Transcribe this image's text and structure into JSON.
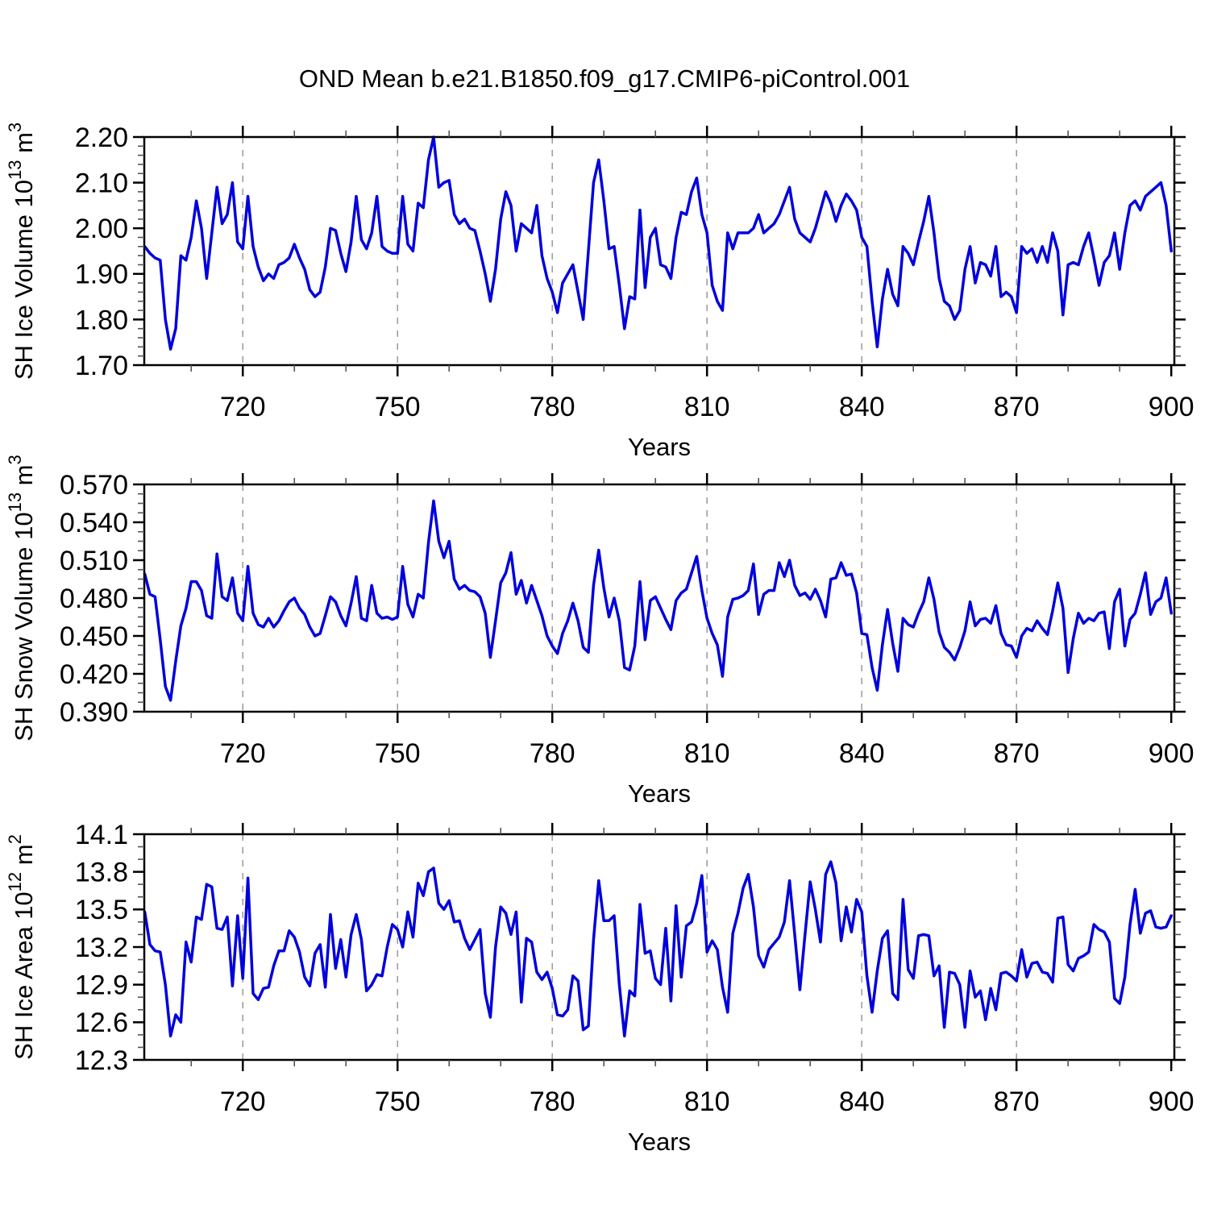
{
  "title": "OND Mean b.e21.B1850.f09_g17.CMIP6-piControl.001",
  "line_color": "#0000dd",
  "grid_color": "#999999",
  "axis_color": "#000000",
  "minor_tick_color": "#555555",
  "x_axis": {
    "label": "Years",
    "range": [
      700.9,
      900.6
    ],
    "major_ticks": [
      720,
      750,
      780,
      810,
      840,
      870,
      900
    ],
    "grid_ticks": [
      720,
      750,
      780,
      810,
      840,
      870
    ],
    "minor_step": 10
  },
  "chart_data": [
    {
      "type": "line",
      "id": "ice-volume",
      "ylabel": "SH Ice Volume 10^13 m^3",
      "ylabel_parts": [
        {
          "t": "SH Ice Volume 10"
        },
        {
          "t": "13",
          "sup": true
        },
        {
          "t": " m"
        },
        {
          "t": "3",
          "sup": true
        }
      ],
      "ylim": [
        1.7,
        2.2
      ],
      "ytick_step": 0.1,
      "ytick_decimals": 2,
      "yminor_step": 0.02,
      "x_start": 701,
      "x_step": 1,
      "values": [
        1.96,
        1.945,
        1.935,
        1.93,
        1.8,
        1.735,
        1.78,
        1.94,
        1.93,
        1.98,
        2.06,
        2.0,
        1.89,
        1.99,
        2.09,
        2.01,
        2.03,
        2.1,
        1.97,
        1.955,
        2.07,
        1.96,
        1.915,
        1.885,
        1.9,
        1.89,
        1.92,
        1.925,
        1.935,
        1.965,
        1.935,
        1.91,
        1.865,
        1.85,
        1.86,
        1.915,
        2.0,
        1.995,
        1.945,
        1.905,
        1.97,
        2.07,
        1.975,
        1.955,
        1.99,
        2.07,
        1.96,
        1.95,
        1.945,
        1.945,
        2.07,
        1.965,
        1.95,
        2.055,
        2.045,
        2.15,
        2.2,
        2.09,
        2.1,
        2.105,
        2.03,
        2.01,
        2.02,
        2.0,
        1.995,
        1.95,
        1.9,
        1.84,
        1.91,
        2.02,
        2.08,
        2.05,
        1.95,
        2.01,
        2.0,
        1.99,
        2.05,
        1.94,
        1.89,
        1.86,
        1.815,
        1.88,
        1.9,
        1.92,
        1.86,
        1.8,
        1.95,
        2.1,
        2.15,
        2.06,
        1.955,
        1.96,
        1.875,
        1.78,
        1.85,
        1.845,
        2.04,
        1.87,
        1.98,
        2.0,
        1.92,
        1.915,
        1.89,
        1.98,
        2.035,
        2.03,
        2.08,
        2.11,
        2.03,
        1.99,
        1.875,
        1.84,
        1.82,
        1.99,
        1.955,
        1.99,
        1.99,
        1.99,
        2.0,
        2.03,
        1.99,
        2.0,
        2.01,
        2.03,
        2.06,
        2.09,
        2.02,
        1.99,
        1.98,
        1.97,
        2.0,
        2.04,
        2.08,
        2.055,
        2.015,
        2.05,
        2.075,
        2.06,
        2.04,
        1.98,
        1.96,
        1.84,
        1.74,
        1.845,
        1.91,
        1.855,
        1.83,
        1.96,
        1.945,
        1.92,
        1.97,
        2.015,
        2.07,
        1.99,
        1.89,
        1.84,
        1.83,
        1.8,
        1.82,
        1.91,
        1.96,
        1.88,
        1.925,
        1.92,
        1.895,
        1.96,
        1.85,
        1.86,
        1.85,
        1.815,
        1.96,
        1.945,
        1.955,
        1.925,
        1.96,
        1.925,
        1.99,
        1.95,
        1.81,
        1.92,
        1.925,
        1.92,
        1.96,
        1.99,
        1.935,
        1.875,
        1.925,
        1.94,
        1.99,
        1.91,
        1.99,
        2.05,
        2.06,
        2.04,
        2.07,
        2.08,
        2.09,
        2.1,
        2.05,
        1.95
      ]
    },
    {
      "type": "line",
      "id": "snow-volume",
      "ylabel": "SH Snow Volume 10^13 m^3",
      "ylabel_parts": [
        {
          "t": "SH Snow Volume 10"
        },
        {
          "t": "13",
          "sup": true
        },
        {
          "t": " m"
        },
        {
          "t": "3",
          "sup": true
        }
      ],
      "ylim": [
        0.39,
        0.57
      ],
      "ytick_step": 0.03,
      "ytick_decimals": 3,
      "yminor_step": 0.0075,
      "x_start": 701,
      "x_step": 1,
      "values": [
        0.499,
        0.483,
        0.481,
        0.447,
        0.41,
        0.399,
        0.43,
        0.458,
        0.472,
        0.493,
        0.493,
        0.486,
        0.466,
        0.464,
        0.515,
        0.481,
        0.478,
        0.496,
        0.468,
        0.462,
        0.505,
        0.468,
        0.459,
        0.457,
        0.464,
        0.457,
        0.462,
        0.47,
        0.477,
        0.48,
        0.472,
        0.467,
        0.457,
        0.45,
        0.452,
        0.466,
        0.481,
        0.477,
        0.466,
        0.458,
        0.476,
        0.497,
        0.464,
        0.462,
        0.49,
        0.468,
        0.464,
        0.465,
        0.463,
        0.465,
        0.505,
        0.475,
        0.465,
        0.483,
        0.48,
        0.524,
        0.557,
        0.525,
        0.512,
        0.525,
        0.495,
        0.487,
        0.49,
        0.486,
        0.485,
        0.481,
        0.468,
        0.433,
        0.462,
        0.492,
        0.5,
        0.516,
        0.483,
        0.494,
        0.476,
        0.49,
        0.478,
        0.466,
        0.45,
        0.442,
        0.436,
        0.452,
        0.462,
        0.476,
        0.462,
        0.441,
        0.437,
        0.49,
        0.518,
        0.488,
        0.465,
        0.48,
        0.462,
        0.425,
        0.423,
        0.442,
        0.493,
        0.447,
        0.478,
        0.481,
        0.472,
        0.463,
        0.455,
        0.478,
        0.484,
        0.487,
        0.5,
        0.513,
        0.486,
        0.464,
        0.452,
        0.443,
        0.418,
        0.465,
        0.479,
        0.48,
        0.482,
        0.486,
        0.507,
        0.467,
        0.483,
        0.486,
        0.486,
        0.508,
        0.497,
        0.51,
        0.49,
        0.482,
        0.484,
        0.479,
        0.487,
        0.478,
        0.465,
        0.495,
        0.496,
        0.508,
        0.498,
        0.499,
        0.484,
        0.452,
        0.451,
        0.425,
        0.407,
        0.443,
        0.471,
        0.444,
        0.422,
        0.464,
        0.459,
        0.457,
        0.468,
        0.477,
        0.496,
        0.479,
        0.453,
        0.441,
        0.437,
        0.431,
        0.441,
        0.454,
        0.477,
        0.458,
        0.463,
        0.464,
        0.46,
        0.474,
        0.452,
        0.443,
        0.442,
        0.433,
        0.45,
        0.456,
        0.454,
        0.462,
        0.456,
        0.451,
        0.47,
        0.492,
        0.472,
        0.421,
        0.448,
        0.468,
        0.46,
        0.464,
        0.462,
        0.468,
        0.469,
        0.44,
        0.477,
        0.487,
        0.442,
        0.463,
        0.468,
        0.483,
        0.5,
        0.467,
        0.477,
        0.48,
        0.496,
        0.468
      ]
    },
    {
      "type": "line",
      "id": "ice-area",
      "ylabel": "SH Ice Area 10^12 m^2",
      "ylabel_parts": [
        {
          "t": "SH Ice Area 10"
        },
        {
          "t": "12",
          "sup": true
        },
        {
          "t": " m"
        },
        {
          "t": "2",
          "sup": true
        }
      ],
      "ylim": [
        12.3,
        14.1
      ],
      "ytick_step": 0.3,
      "ytick_decimals": 1,
      "yminor_step": 0.1,
      "x_start": 701,
      "x_step": 1,
      "values": [
        13.48,
        13.22,
        13.17,
        13.16,
        12.9,
        12.49,
        12.66,
        12.6,
        13.24,
        13.08,
        13.44,
        13.42,
        13.7,
        13.68,
        13.35,
        13.34,
        13.44,
        12.89,
        13.45,
        12.95,
        13.75,
        12.83,
        12.78,
        12.87,
        12.88,
        13.05,
        13.17,
        13.17,
        13.33,
        13.28,
        13.16,
        12.96,
        12.89,
        13.15,
        13.22,
        12.88,
        13.46,
        13.03,
        13.26,
        12.96,
        13.3,
        13.46,
        13.26,
        12.85,
        12.9,
        12.98,
        12.97,
        13.2,
        13.38,
        13.34,
        13.2,
        13.48,
        13.28,
        13.71,
        13.61,
        13.8,
        13.83,
        13.55,
        13.5,
        13.57,
        13.4,
        13.41,
        13.27,
        13.18,
        13.26,
        13.34,
        12.83,
        12.64,
        13.2,
        13.52,
        13.47,
        13.3,
        13.48,
        12.76,
        13.27,
        13.24,
        13.0,
        12.94,
        13.0,
        12.87,
        12.66,
        12.65,
        12.7,
        12.97,
        12.93,
        12.54,
        12.57,
        13.26,
        13.73,
        13.41,
        13.41,
        13.45,
        12.9,
        12.49,
        12.85,
        12.81,
        13.54,
        13.15,
        13.17,
        12.95,
        12.9,
        13.35,
        12.77,
        13.53,
        12.96,
        13.37,
        13.4,
        13.55,
        13.77,
        13.16,
        13.25,
        13.18,
        12.88,
        12.68,
        13.31,
        13.47,
        13.67,
        13.78,
        13.52,
        13.13,
        13.04,
        13.18,
        13.23,
        13.28,
        13.4,
        13.73,
        13.3,
        12.86,
        13.3,
        13.72,
        13.5,
        13.24,
        13.78,
        13.88,
        13.71,
        13.25,
        13.52,
        13.32,
        13.58,
        13.48,
        12.97,
        12.68,
        13.01,
        13.27,
        13.33,
        12.83,
        12.78,
        13.58,
        13.02,
        12.95,
        13.29,
        13.3,
        13.29,
        12.97,
        13.05,
        12.56,
        13.0,
        12.99,
        12.9,
        12.56,
        13.01,
        12.8,
        12.85,
        12.62,
        12.87,
        12.7,
        12.99,
        13.0,
        12.97,
        12.93,
        13.18,
        12.96,
        13.07,
        13.08,
        13.0,
        12.99,
        12.92,
        13.43,
        13.44,
        13.06,
        13.01,
        13.11,
        13.13,
        13.16,
        13.38,
        13.34,
        13.32,
        13.24,
        12.79,
        12.75,
        12.96,
        13.38,
        13.66,
        13.31,
        13.47,
        13.49,
        13.36,
        13.35,
        13.36,
        13.45
      ]
    }
  ]
}
